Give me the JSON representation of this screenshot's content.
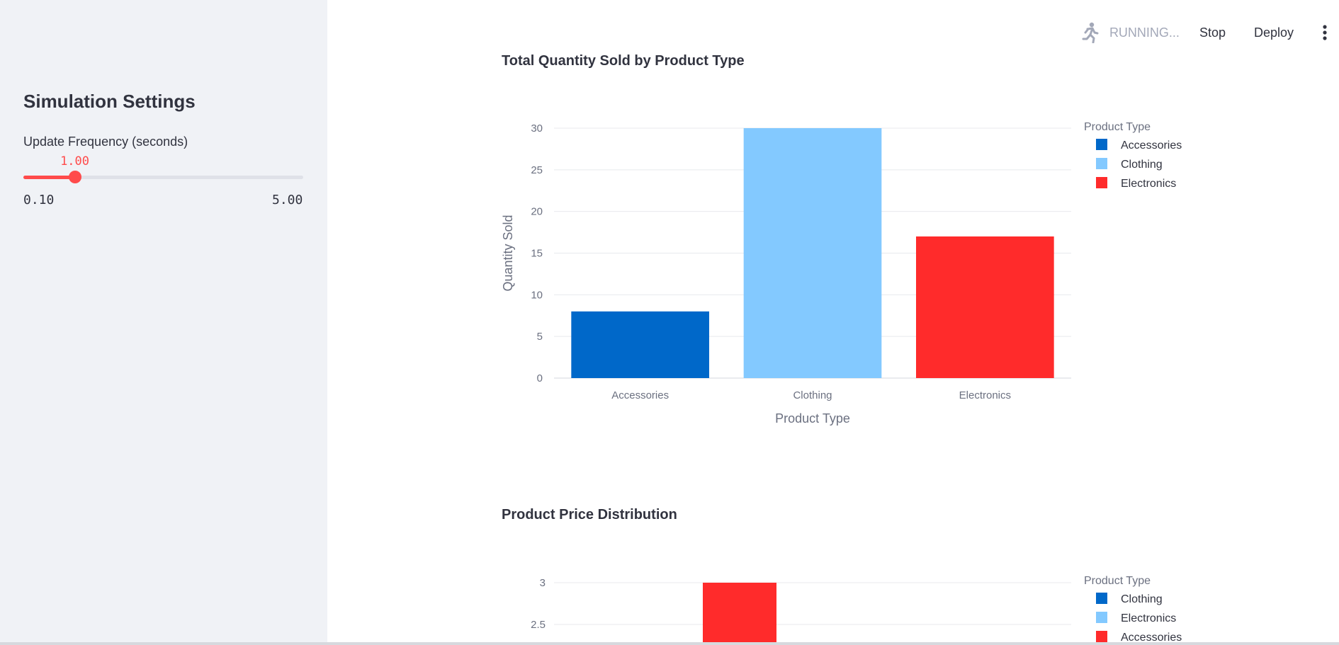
{
  "sidebar": {
    "title": "Simulation Settings",
    "slider": {
      "label": "Update Frequency (seconds)",
      "value": 1.0,
      "value_text": "1.00",
      "min": 0.1,
      "max": 5.0,
      "min_text": "0.10",
      "max_text": "5.00"
    }
  },
  "topbar": {
    "status": "RUNNING...",
    "status_icon": "running-man-icon",
    "stop": "Stop",
    "deploy": "Deploy",
    "menu_icon": "vertical-ellipsis-icon"
  },
  "colors": {
    "accent": "#ff4b4b",
    "dark_blue": "#0068c9",
    "light_blue": "#83c9ff",
    "red": "#ff2b2b",
    "sidebar_bg": "#f0f2f6"
  },
  "chart_data": [
    {
      "type": "bar",
      "title": "Total Quantity Sold by Product Type",
      "categories": [
        "Accessories",
        "Clothing",
        "Electronics"
      ],
      "values": [
        8,
        30,
        17
      ],
      "bar_colors": [
        "#0068c9",
        "#83c9ff",
        "#ff2b2b"
      ],
      "xlabel": "Product Type",
      "ylabel": "Quantity Sold",
      "ylim": [
        0,
        30
      ],
      "yticks": [
        0,
        5,
        10,
        15,
        20,
        25,
        30
      ],
      "legend_title": "Product Type",
      "legend": [
        {
          "name": "Accessories",
          "color": "#0068c9"
        },
        {
          "name": "Clothing",
          "color": "#83c9ff"
        },
        {
          "name": "Electronics",
          "color": "#ff2b2b"
        }
      ],
      "legend_position": "top-right",
      "grid": true
    },
    {
      "type": "bar",
      "title": "Product Price Distribution",
      "yticks": [
        2.5,
        3
      ],
      "ylim": [
        0,
        3
      ],
      "bars": [
        {
          "category": "Accessories",
          "value": 3,
          "color": "#ff2b2b"
        }
      ],
      "legend_title": "Product Type",
      "legend": [
        {
          "name": "Clothing",
          "color": "#0068c9"
        },
        {
          "name": "Electronics",
          "color": "#83c9ff"
        },
        {
          "name": "Accessories",
          "color": "#ff2b2b"
        }
      ],
      "legend_position": "top-right",
      "grid": true
    }
  ]
}
